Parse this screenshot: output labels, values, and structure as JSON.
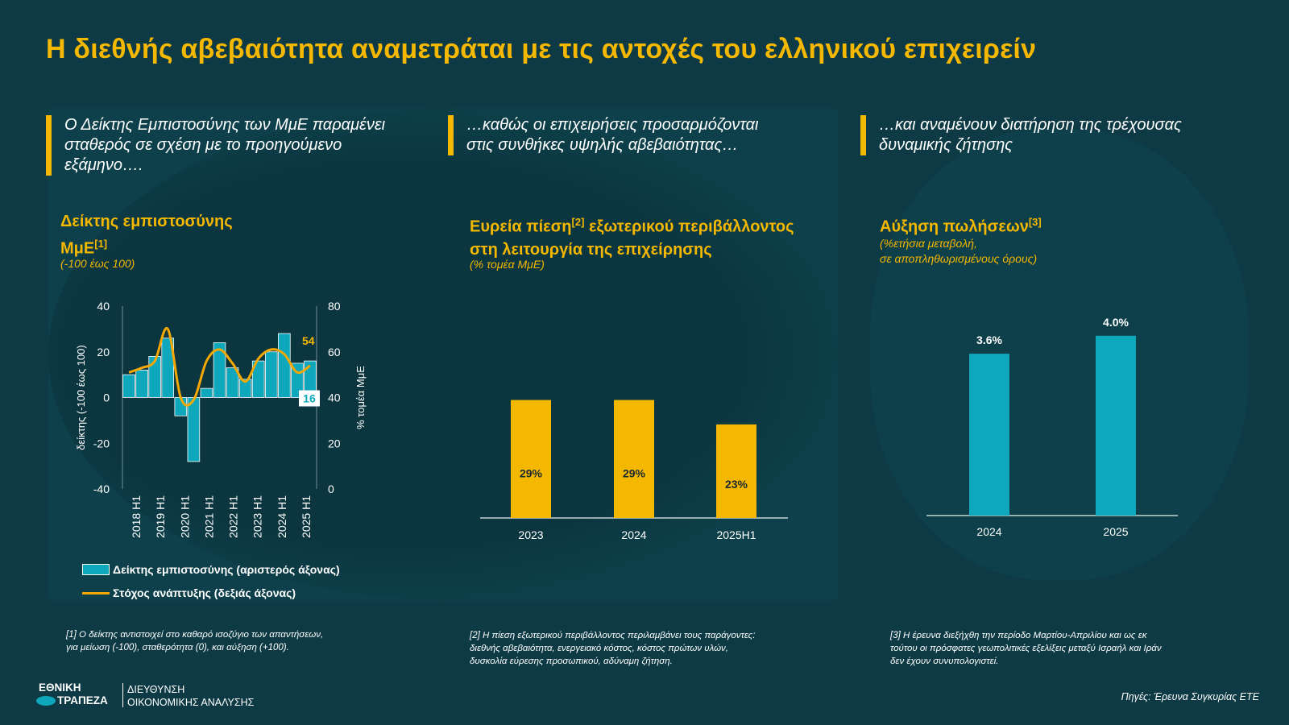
{
  "title": "Η διεθνής αβεβαιότητα αναμετράται με τις αντοχές του ελληνικού επιχειρείν",
  "colors": {
    "accent": "#f5b800",
    "teal": "#0ea7bb",
    "background": "#0d3a44",
    "panel": "#0f4652"
  },
  "panels": [
    {
      "quote": [
        "Ο Δείκτης Εμπιστοσύνης των ΜμΕ παραμένει",
        "σταθερός σε σχέση με το προηγούμενο",
        "εξάμηνο…."
      ],
      "chart_title_line1": "Δείκτης εμπιστοσύνης",
      "chart_title_line2": "ΜμΕ",
      "chart_title_sup": "[1]",
      "chart_subtitle": "(-100 έως 100)",
      "footnote": [
        "[1]  Ο δείκτης αντιστοιχεί στο καθαρό ισοζύγιο των απαντήσεων,",
        "για μείωση (-100), σταθερότητα (0), και αύξηση (+100)."
      ]
    },
    {
      "quote": [
        "…καθώς οι επιχειρήσεις προσαρμόζονται",
        "στις συνθήκες υψηλής αβεβαιότητας…"
      ],
      "chart_title_line1_a": "Ευρεία πίεση",
      "chart_title_sup": "[2]",
      "chart_title_line1_b": " εξωτερικού περιβάλλοντος",
      "chart_title_line2": "στη λειτουργία της επιχείρησης",
      "chart_subtitle": "(% τομέα ΜμΕ)",
      "footnote": [
        "[2] Η πίεση εξωτερικού περιβάλλοντος περιλαμβάνει τους παράγοντες:",
        "διεθνής αβεβαιότητα, ενεργειακό κόστος, κόστος πρώτων υλών,",
        "δυσκολία εύρεσης προσωπικού, αδύναμη ζήτηση."
      ]
    },
    {
      "quote": [
        "…και αναμένουν διατήρηση της τρέχουσας",
        "δυναμικής ζήτησης"
      ],
      "chart_title_line1": "Αύξηση πωλήσεων",
      "chart_title_sup": "[3]",
      "chart_subtitle_line1": "(%ετήσια μεταβολή,",
      "chart_subtitle_line2": "σε αποπληθωρισμένους όρους)",
      "footnote": [
        "[3]  Η  έρευνα  διεξήχθη  την  περίοδο  Μαρτίου-Απριλίου  και  ως  εκ",
        "τούτου οι πρόσφατες γεωπολιτικές εξελίξεις μεταξύ Ισραήλ και Ιράν",
        "δεν έχουν συνυπολογιστεί."
      ]
    }
  ],
  "chart_data": [
    {
      "type": "bar",
      "subtype": "bar+line dual axis",
      "x_tick_labels": [
        "2018 H1",
        "2019 H1",
        "2020 H1",
        "2021 H1",
        "2022 H1",
        "2023 H1",
        "2024 H1",
        "2025 H1"
      ],
      "ylabel_left": "δείκτης (-100 έως 100)",
      "ylabel_right": "% τομέα ΜμΕ",
      "ylim_left": [
        -40,
        40
      ],
      "ylim_right": [
        0,
        80
      ],
      "yticks_left": [
        "40",
        "20",
        "0",
        "-20",
        "-40"
      ],
      "yticks_right": [
        "80",
        "60",
        "40",
        "20",
        "0"
      ],
      "series": [
        {
          "name": "Δείκτης εμπιστοσύνης (αριστερός άξονας)",
          "kind": "bar",
          "axis": "left",
          "values": [
            10,
            12,
            18,
            26,
            -8,
            -28,
            4,
            24,
            13,
            8,
            16,
            20,
            28,
            15,
            16
          ]
        },
        {
          "name": "Στόχος ανάπτυξης (δεξιάς άξονας)",
          "kind": "line",
          "axis": "right",
          "values": [
            51,
            53,
            56,
            70,
            40,
            39,
            56,
            61,
            55,
            47,
            57,
            61,
            59,
            51,
            54
          ]
        }
      ],
      "end_labels": {
        "bar": "16",
        "line": "54"
      },
      "legend_position": "bottom"
    },
    {
      "type": "bar",
      "categories": [
        "2023",
        "2024",
        "2025H1"
      ],
      "values": [
        29,
        29,
        23
      ],
      "value_labels": [
        "29%",
        "29%",
        "23%"
      ],
      "ylim": [
        0,
        40
      ]
    },
    {
      "type": "bar",
      "categories": [
        "2024",
        "2025"
      ],
      "values": [
        3.6,
        4.0
      ],
      "value_labels": [
        "3.6%",
        "4.0%"
      ],
      "ylim": [
        0,
        5
      ]
    }
  ],
  "footer": {
    "logo_line1": "ΕΘΝΙΚΗ",
    "logo_line2": "ΤΡΑΠΕΖΑ",
    "dept_line1": "ΔΙΕΥΘΥΝΣΗ",
    "dept_line2": "ΟΙΚΟΝΟΜΙΚΗΣ ΑΝΑΛΥΣΗΣ",
    "source": "Πηγές: Έρευνα Συγκυρίας ΕΤΕ"
  }
}
